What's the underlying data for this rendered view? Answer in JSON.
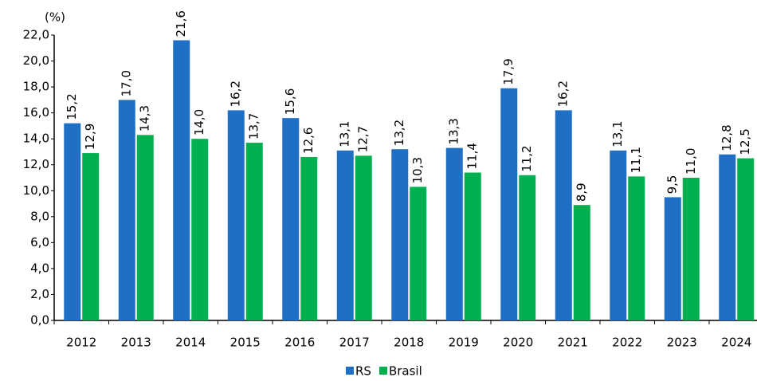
{
  "chart_data": {
    "type": "bar",
    "y_label": "(%)",
    "categories": [
      "2012",
      "2013",
      "2014",
      "2015",
      "2016",
      "2017",
      "2018",
      "2019",
      "2020",
      "2021",
      "2022",
      "2023",
      "2024"
    ],
    "series": [
      {
        "name": "RS",
        "color": "#1f6fc5",
        "values": [
          15.2,
          17.0,
          21.6,
          16.2,
          15.6,
          13.1,
          13.2,
          13.3,
          17.9,
          16.2,
          13.1,
          9.5,
          12.8
        ],
        "value_labels": [
          "15,2",
          "17,0",
          "21,6",
          "16,2",
          "15,6",
          "13,1",
          "13,2",
          "13,3",
          "17,9",
          "16,2",
          "13,1",
          "9,5",
          "12,8"
        ]
      },
      {
        "name": "Brasil",
        "color": "#00b050",
        "values": [
          12.9,
          14.3,
          14.0,
          13.7,
          12.6,
          12.7,
          10.3,
          11.4,
          11.2,
          8.9,
          11.1,
          11.0,
          12.5
        ],
        "value_labels": [
          "12,9",
          "14,3",
          "14,0",
          "13,7",
          "12,6",
          "12,7",
          "10,3",
          "11,4",
          "11,2",
          "8,9",
          "11,1",
          "11,0",
          "12,5"
        ]
      }
    ],
    "ylim": [
      0,
      22
    ],
    "yticks": [
      {
        "value": 0,
        "label": "0,0"
      },
      {
        "value": 2,
        "label": "2,0"
      },
      {
        "value": 4,
        "label": "4,0"
      },
      {
        "value": 6,
        "label": "6,0"
      },
      {
        "value": 8,
        "label": "8,0"
      },
      {
        "value": 10,
        "label": "10,0"
      },
      {
        "value": 12,
        "label": "12,0"
      },
      {
        "value": 14,
        "label": "14,0"
      },
      {
        "value": 16,
        "label": "16,0"
      },
      {
        "value": 18,
        "label": "18,0"
      },
      {
        "value": 20,
        "label": "20,0"
      },
      {
        "value": 22,
        "label": "22,0"
      }
    ],
    "grid": false,
    "legend": "bottom"
  }
}
